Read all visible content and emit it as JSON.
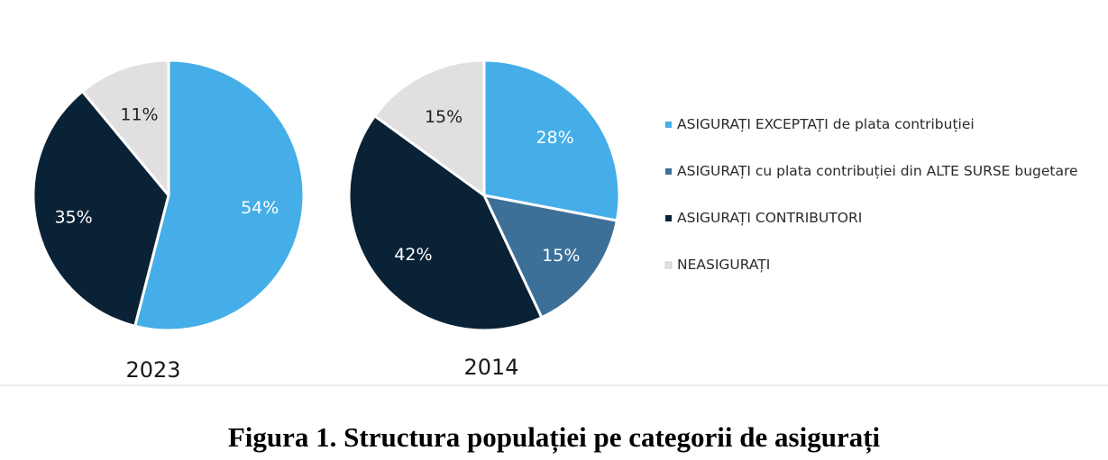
{
  "caption": "Figura 1. Structura populației pe categorii de asigurați",
  "chart_data": [
    {
      "type": "pie",
      "title": "2023",
      "slices": [
        {
          "category": "ASIGURAȚI EXCEPTAȚI de plata contribuției",
          "value": 54,
          "label": "54%",
          "color": "#45aee8"
        },
        {
          "category": "ASIGURAȚI CONTRIBUTORI",
          "value": 35,
          "label": "35%",
          "color": "#0a2236"
        },
        {
          "category": "NEASIGURAȚI",
          "value": 11,
          "label": "11%",
          "color": "#e1dfe0"
        }
      ]
    },
    {
      "type": "pie",
      "title": "2014",
      "slices": [
        {
          "category": "ASIGURAȚI EXCEPTAȚI de plata contribuției",
          "value": 28,
          "label": "28%",
          "color": "#45aee8"
        },
        {
          "category": "ASIGURAȚI cu plata contribuției din ALTE SURSE bugetare",
          "value": 15,
          "label": "15%",
          "color": "#3d7099"
        },
        {
          "category": "ASIGURAȚI CONTRIBUTORI",
          "value": 42,
          "label": "42%",
          "color": "#0a2236"
        },
        {
          "category": "NEASIGURAȚI",
          "value": 15,
          "label": "15%",
          "color": "#e1dfe0"
        }
      ]
    }
  ],
  "legend": {
    "placement": "right",
    "items": [
      {
        "label": "ASIGURAȚI EXCEPTAȚI de plata contribuției",
        "color": "#45aee8"
      },
      {
        "label": "ASIGURAȚI cu plata contribuției din ALTE SURSE bugetare",
        "color": "#3d7099"
      },
      {
        "label": "ASIGURAȚI CONTRIBUTORI",
        "color": "#0a2236"
      },
      {
        "label": "NEASIGURAȚI",
        "color": "#e1dfe0"
      }
    ]
  }
}
